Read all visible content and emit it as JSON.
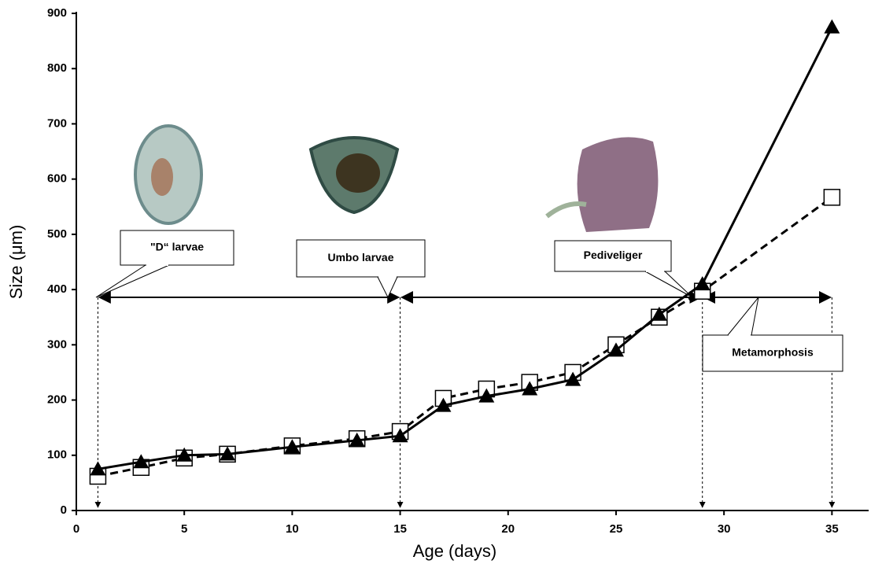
{
  "chart_data": {
    "type": "line",
    "x_label": "Age (days)",
    "y_label": "Size (μm)",
    "x": [
      1,
      3,
      5,
      7,
      10,
      13,
      15,
      17,
      19,
      21,
      23,
      25,
      27,
      29,
      35
    ],
    "series": [
      {
        "color": "#000000",
        "marker": "square",
        "dashed": true,
        "values": [
          62,
          78,
          95,
          102,
          117,
          130,
          143,
          203,
          220,
          232,
          250,
          300,
          350,
          397,
          567
        ]
      },
      {
        "color": "#000000",
        "marker": "triangle",
        "dashed": false,
        "values": [
          75,
          88,
          100,
          102,
          115,
          127,
          135,
          190,
          207,
          220,
          237,
          290,
          355,
          410,
          875
        ]
      }
    ],
    "xlim": [
      0,
      36.7
    ],
    "xticks": [
      0,
      5,
      10,
      15,
      20,
      25,
      30,
      35
    ],
    "ylim": [
      0,
      900
    ],
    "yticks": [
      0,
      100,
      200,
      300,
      400,
      500,
      600,
      700,
      800,
      900
    ],
    "grid": false,
    "stages": [
      {
        "label": "\"D“ larvae",
        "from": 1,
        "to": 15
      },
      {
        "label": "Umbo larvae",
        "from": 15,
        "to": 29
      },
      {
        "label": "Pediveliger",
        "from": 15,
        "to": 29
      },
      {
        "label": "Metamorphosis",
        "from": 29,
        "to": 35
      }
    ]
  }
}
